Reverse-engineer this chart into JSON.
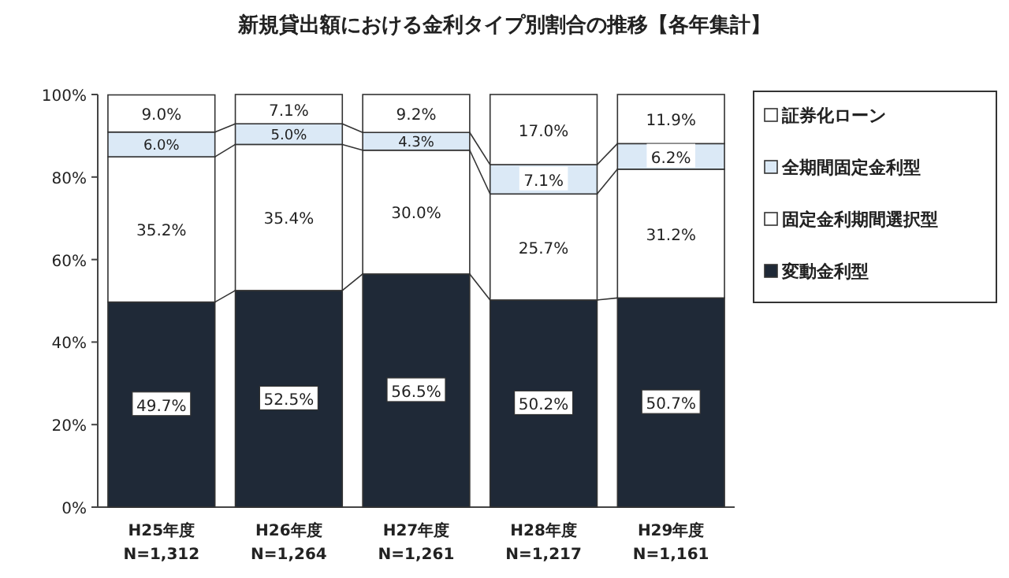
{
  "chart_data": {
    "type": "bar",
    "stacked": true,
    "title": "新規貸出額における金利タイプ別割合の推移【各年集計】",
    "categories": [
      "H25年度\nN=1,312",
      "H26年度\nN=1,264",
      "H27年度\nN=1,261",
      "H28年度\nN=1,217",
      "H29年度\nN=1,161"
    ],
    "series": [
      {
        "name": "変動金利型",
        "color": "#1f2937",
        "values": [
          49.7,
          52.5,
          56.5,
          50.2,
          50.7
        ],
        "value_labels": [
          "49.7%",
          "52.5%",
          "56.5%",
          "50.2%",
          "50.7%"
        ]
      },
      {
        "name": "固定金利期間選択型",
        "color": "#ffffff",
        "values": [
          35.2,
          35.4,
          30.0,
          25.7,
          31.2
        ],
        "value_labels": [
          "35.2%",
          "35.4%",
          "30.0%",
          "25.7%",
          "31.2%"
        ]
      },
      {
        "name": "全期間固定金利型",
        "color": "#dbe9f6",
        "values": [
          6.0,
          5.0,
          4.3,
          7.1,
          6.2
        ],
        "value_labels": [
          "6.0%",
          "5.0%",
          "4.3%",
          "7.1%",
          "6.2%"
        ]
      },
      {
        "name": "証券化ローン",
        "color": "#ffffff",
        "values": [
          9.0,
          7.1,
          9.2,
          17.0,
          11.9
        ],
        "value_labels": [
          "9.0%",
          "7.1%",
          "9.2%",
          "17.0%",
          "11.9%"
        ]
      }
    ],
    "ylim": [
      0,
      100
    ],
    "yticks": [
      {
        "value": 0,
        "label": "0%"
      },
      {
        "value": 20,
        "label": "20%"
      },
      {
        "value": 40,
        "label": "40%"
      },
      {
        "value": 60,
        "label": "60%"
      },
      {
        "value": 80,
        "label": "80%"
      },
      {
        "value": 100,
        "label": "100%"
      }
    ],
    "legend": "right"
  }
}
